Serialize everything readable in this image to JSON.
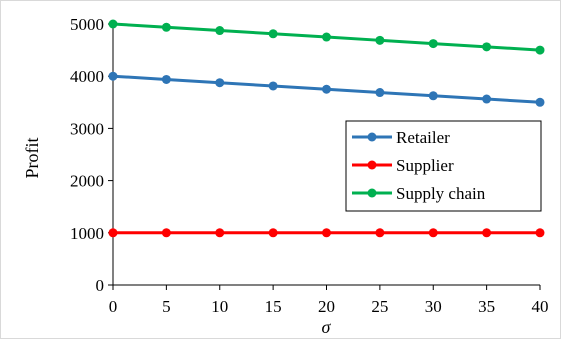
{
  "chart_data": {
    "type": "line",
    "xlabel": "σ",
    "ylabel": "Profit",
    "x": [
      0,
      5,
      10,
      15,
      20,
      25,
      30,
      35,
      40
    ],
    "xlim": [
      0,
      40
    ],
    "ylim": [
      0,
      5000
    ],
    "x_ticks": [
      "0",
      "5",
      "10",
      "15",
      "20",
      "25",
      "30",
      "35",
      "40"
    ],
    "y_ticks": [
      "0",
      "1000",
      "2000",
      "3000",
      "4000",
      "5000"
    ],
    "grid": false,
    "legend_position": "right",
    "series": [
      {
        "name": "Retailer",
        "color": "#2e75b6",
        "values": [
          4000,
          3937.5,
          3875,
          3812.5,
          3750,
          3687.5,
          3625,
          3562.5,
          3500
        ]
      },
      {
        "name": "Supplier",
        "color": "#ff0000",
        "values": [
          1000,
          1000,
          1000,
          1000,
          1000,
          1000,
          1000,
          1000,
          1000
        ]
      },
      {
        "name": "Supply chain",
        "color": "#00b050",
        "values": [
          5000,
          4937.5,
          4875,
          4812.5,
          4750,
          4687.5,
          4625,
          4562.5,
          4500
        ]
      }
    ]
  }
}
